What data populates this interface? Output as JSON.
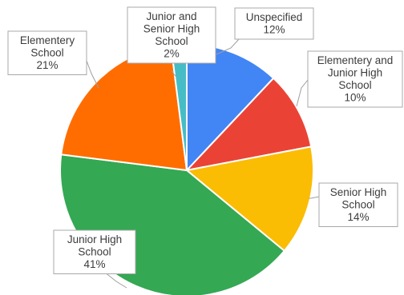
{
  "chart_data": {
    "type": "pie",
    "title": "",
    "start_angle_deg": 0,
    "direction": "clockwise",
    "slices": [
      {
        "label": [
          "Unspecified"
        ],
        "percent_label": "12%",
        "value": 12,
        "color": "#4285f4"
      },
      {
        "label": [
          "Elementery and",
          "Junior High",
          "School"
        ],
        "percent_label": "10%",
        "value": 10,
        "color": "#ea4335"
      },
      {
        "label": [
          "Senior High",
          "School"
        ],
        "percent_label": "14%",
        "value": 14,
        "color": "#fbbc04"
      },
      {
        "label": [
          "Junior High",
          "School"
        ],
        "percent_label": "41%",
        "value": 41,
        "color": "#34a853"
      },
      {
        "label": [
          "Elementery",
          "School"
        ],
        "percent_label": "21%",
        "value": 21,
        "color": "#ff6d01"
      },
      {
        "label": [
          "Junior and",
          "Senior High",
          "School"
        ],
        "percent_label": "2%",
        "value": 2,
        "color": "#46bdc6"
      }
    ],
    "legend": "none",
    "label_style": "callout boxes with leader lines"
  }
}
